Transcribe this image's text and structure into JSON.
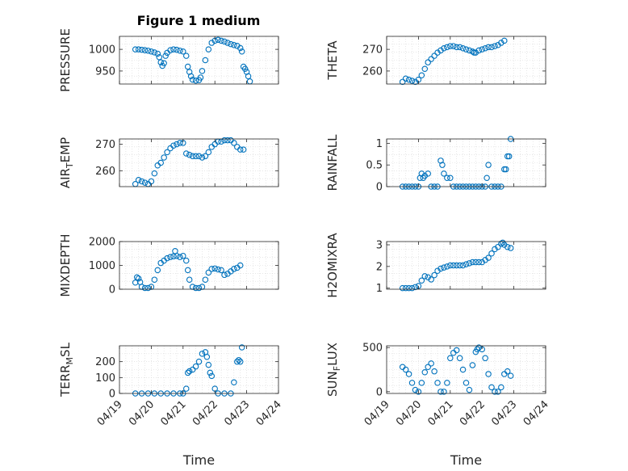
{
  "figure": {
    "title": "Figure 1 medium",
    "marker_color": "#0072BD"
  },
  "chart_data": [
    {
      "type": "scatter",
      "ylabel": "PRESSURE",
      "ylim": [
        920,
        1030
      ],
      "yticks": [
        950,
        1000
      ],
      "xlim": [
        0,
        5
      ],
      "xtick_labels": [
        "04/19",
        "04/20",
        "04/21",
        "04/22",
        "04/23",
        "04/24"
      ],
      "xlabel": "",
      "points": [
        [
          0.5,
          1000
        ],
        [
          0.6,
          1000
        ],
        [
          0.7,
          999
        ],
        [
          0.8,
          998
        ],
        [
          0.9,
          997
        ],
        [
          1.0,
          995
        ],
        [
          1.1,
          993
        ],
        [
          1.2,
          990
        ],
        [
          1.25,
          982
        ],
        [
          1.3,
          970
        ],
        [
          1.35,
          962
        ],
        [
          1.4,
          968
        ],
        [
          1.45,
          985
        ],
        [
          1.5,
          992
        ],
        [
          1.6,
          998
        ],
        [
          1.7,
          1000
        ],
        [
          1.8,
          999
        ],
        [
          1.9,
          997
        ],
        [
          2.0,
          995
        ],
        [
          2.1,
          985
        ],
        [
          2.15,
          960
        ],
        [
          2.2,
          948
        ],
        [
          2.25,
          938
        ],
        [
          2.3,
          930
        ],
        [
          2.4,
          928
        ],
        [
          2.5,
          929
        ],
        [
          2.55,
          935
        ],
        [
          2.6,
          950
        ],
        [
          2.7,
          975
        ],
        [
          2.8,
          1000
        ],
        [
          2.9,
          1015
        ],
        [
          3.0,
          1020
        ],
        [
          3.1,
          1022
        ],
        [
          3.2,
          1020
        ],
        [
          3.3,
          1018
        ],
        [
          3.4,
          1015
        ],
        [
          3.5,
          1012
        ],
        [
          3.6,
          1010
        ],
        [
          3.7,
          1008
        ],
        [
          3.8,
          1003
        ],
        [
          3.85,
          995
        ],
        [
          3.9,
          960
        ],
        [
          3.95,
          955
        ],
        [
          4.0,
          948
        ],
        [
          4.05,
          938
        ],
        [
          4.1,
          926
        ]
      ]
    },
    {
      "type": "scatter",
      "ylabel": "THETA",
      "ylim": [
        254,
        276
      ],
      "yticks": [
        260,
        270
      ],
      "xlim": [
        0,
        5
      ],
      "xtick_labels": [
        "04/19",
        "04/20",
        "04/21",
        "04/22",
        "04/23",
        "04/24"
      ],
      "xlabel": "",
      "points": [
        [
          0.5,
          255
        ],
        [
          0.6,
          256.5
        ],
        [
          0.7,
          256
        ],
        [
          0.8,
          255.5
        ],
        [
          0.9,
          255
        ],
        [
          1.0,
          256
        ],
        [
          1.1,
          258
        ],
        [
          1.2,
          261
        ],
        [
          1.3,
          264
        ],
        [
          1.4,
          265.5
        ],
        [
          1.5,
          267
        ],
        [
          1.6,
          268.5
        ],
        [
          1.7,
          269.5
        ],
        [
          1.8,
          270.5
        ],
        [
          1.9,
          271
        ],
        [
          2.0,
          271.5
        ],
        [
          2.1,
          271.5
        ],
        [
          2.2,
          271
        ],
        [
          2.3,
          271
        ],
        [
          2.4,
          270.5
        ],
        [
          2.5,
          270
        ],
        [
          2.6,
          269.5
        ],
        [
          2.7,
          269
        ],
        [
          2.75,
          268.5
        ],
        [
          2.8,
          268.5
        ],
        [
          2.9,
          269.5
        ],
        [
          3.0,
          270
        ],
        [
          3.1,
          270.5
        ],
        [
          3.2,
          271
        ],
        [
          3.3,
          271
        ],
        [
          3.4,
          271.5
        ],
        [
          3.5,
          272
        ],
        [
          3.6,
          273
        ],
        [
          3.7,
          274
        ]
      ]
    },
    {
      "type": "scatter",
      "ylabel": "AIR_TEMP",
      "ylim": [
        254,
        272
      ],
      "yticks": [
        260,
        270
      ],
      "xlim": [
        0,
        5
      ],
      "xtick_labels": [
        "04/19",
        "04/20",
        "04/21",
        "04/22",
        "04/23",
        "04/24"
      ],
      "xlabel": "",
      "points": [
        [
          0.5,
          255
        ],
        [
          0.6,
          256.5
        ],
        [
          0.7,
          256
        ],
        [
          0.8,
          255.5
        ],
        [
          0.9,
          255
        ],
        [
          1.0,
          256
        ],
        [
          1.1,
          259
        ],
        [
          1.2,
          262
        ],
        [
          1.3,
          263
        ],
        [
          1.4,
          265
        ],
        [
          1.5,
          267
        ],
        [
          1.6,
          268.5
        ],
        [
          1.7,
          269.5
        ],
        [
          1.8,
          270
        ],
        [
          1.9,
          270.5
        ],
        [
          2.0,
          270.5
        ],
        [
          2.1,
          266.5
        ],
        [
          2.2,
          266
        ],
        [
          2.3,
          265.5
        ],
        [
          2.4,
          265.5
        ],
        [
          2.5,
          265.5
        ],
        [
          2.6,
          265
        ],
        [
          2.7,
          265.5
        ],
        [
          2.8,
          267
        ],
        [
          2.9,
          269
        ],
        [
          3.0,
          270
        ],
        [
          3.1,
          271
        ],
        [
          3.2,
          271
        ],
        [
          3.3,
          271.5
        ],
        [
          3.4,
          271.5
        ],
        [
          3.5,
          271.5
        ],
        [
          3.6,
          270.5
        ],
        [
          3.7,
          269
        ],
        [
          3.8,
          268
        ],
        [
          3.9,
          268
        ]
      ]
    },
    {
      "type": "scatter",
      "ylabel": "RAINFALL",
      "ylim": [
        0,
        1.1
      ],
      "yticks": [
        0,
        0.5,
        1
      ],
      "xlim": [
        0,
        5
      ],
      "xtick_labels": [
        "04/19",
        "04/20",
        "04/21",
        "04/22",
        "04/23",
        "04/24"
      ],
      "xlabel": "",
      "points": [
        [
          0.5,
          0
        ],
        [
          0.6,
          0
        ],
        [
          0.7,
          0
        ],
        [
          0.8,
          0
        ],
        [
          0.9,
          0
        ],
        [
          1.0,
          0
        ],
        [
          1.05,
          0.2
        ],
        [
          1.1,
          0.3
        ],
        [
          1.15,
          0.2
        ],
        [
          1.2,
          0.25
        ],
        [
          1.3,
          0.3
        ],
        [
          1.4,
          0
        ],
        [
          1.5,
          0
        ],
        [
          1.6,
          0
        ],
        [
          1.7,
          0.6
        ],
        [
          1.75,
          0.5
        ],
        [
          1.8,
          0.3
        ],
        [
          1.9,
          0.2
        ],
        [
          2.0,
          0.2
        ],
        [
          2.1,
          0
        ],
        [
          2.2,
          0
        ],
        [
          2.3,
          0
        ],
        [
          2.4,
          0
        ],
        [
          2.5,
          0
        ],
        [
          2.6,
          0
        ],
        [
          2.7,
          0
        ],
        [
          2.8,
          0
        ],
        [
          2.9,
          0
        ],
        [
          3.0,
          0
        ],
        [
          3.1,
          0
        ],
        [
          3.15,
          0.2
        ],
        [
          3.2,
          0.5
        ],
        [
          3.3,
          0
        ],
        [
          3.4,
          0
        ],
        [
          3.5,
          0
        ],
        [
          3.6,
          0
        ],
        [
          3.7,
          0.4
        ],
        [
          3.75,
          0.4
        ],
        [
          3.8,
          0.7
        ],
        [
          3.85,
          0.7
        ],
        [
          3.9,
          1.1
        ]
      ]
    },
    {
      "type": "scatter",
      "ylabel": "MIXDEPTH",
      "ylim": [
        0,
        2000
      ],
      "yticks": [
        0,
        1000,
        2000
      ],
      "xlim": [
        0,
        5
      ],
      "xtick_labels": [
        "04/19",
        "04/20",
        "04/21",
        "04/22",
        "04/23",
        "04/24"
      ],
      "xlabel": "",
      "points": [
        [
          0.5,
          280
        ],
        [
          0.55,
          500
        ],
        [
          0.6,
          450
        ],
        [
          0.65,
          300
        ],
        [
          0.7,
          100
        ],
        [
          0.8,
          50
        ],
        [
          0.9,
          50
        ],
        [
          1.0,
          100
        ],
        [
          1.1,
          400
        ],
        [
          1.2,
          800
        ],
        [
          1.3,
          1100
        ],
        [
          1.4,
          1200
        ],
        [
          1.5,
          1300
        ],
        [
          1.6,
          1350
        ],
        [
          1.7,
          1380
        ],
        [
          1.75,
          1600
        ],
        [
          1.8,
          1400
        ],
        [
          1.9,
          1350
        ],
        [
          2.0,
          1400
        ],
        [
          2.1,
          1200
        ],
        [
          2.15,
          800
        ],
        [
          2.2,
          400
        ],
        [
          2.3,
          100
        ],
        [
          2.4,
          50
        ],
        [
          2.5,
          50
        ],
        [
          2.6,
          100
        ],
        [
          2.7,
          400
        ],
        [
          2.8,
          700
        ],
        [
          2.9,
          850
        ],
        [
          3.0,
          870
        ],
        [
          3.1,
          830
        ],
        [
          3.2,
          800
        ],
        [
          3.3,
          600
        ],
        [
          3.4,
          650
        ],
        [
          3.5,
          750
        ],
        [
          3.6,
          850
        ],
        [
          3.7,
          900
        ],
        [
          3.8,
          1000
        ]
      ]
    },
    {
      "type": "scatter",
      "ylabel": "H2OMIXRA",
      "ylim": [
        0.95,
        3.15
      ],
      "yticks": [
        1,
        2,
        3
      ],
      "xlim": [
        0,
        5
      ],
      "xtick_labels": [
        "04/19",
        "04/20",
        "04/21",
        "04/22",
        "04/23",
        "04/24"
      ],
      "xlabel": "",
      "points": [
        [
          0.5,
          1
        ],
        [
          0.6,
          1
        ],
        [
          0.7,
          1
        ],
        [
          0.8,
          1
        ],
        [
          0.9,
          1.05
        ],
        [
          1.0,
          1.1
        ],
        [
          1.1,
          1.35
        ],
        [
          1.2,
          1.55
        ],
        [
          1.3,
          1.5
        ],
        [
          1.4,
          1.4
        ],
        [
          1.5,
          1.6
        ],
        [
          1.6,
          1.8
        ],
        [
          1.7,
          1.9
        ],
        [
          1.8,
          1.95
        ],
        [
          1.9,
          2
        ],
        [
          2.0,
          2.05
        ],
        [
          2.1,
          2.05
        ],
        [
          2.2,
          2.05
        ],
        [
          2.3,
          2.05
        ],
        [
          2.4,
          2.05
        ],
        [
          2.5,
          2.1
        ],
        [
          2.6,
          2.15
        ],
        [
          2.7,
          2.2
        ],
        [
          2.8,
          2.2
        ],
        [
          2.9,
          2.2
        ],
        [
          3.0,
          2.2
        ],
        [
          3.1,
          2.3
        ],
        [
          3.2,
          2.4
        ],
        [
          3.3,
          2.6
        ],
        [
          3.4,
          2.8
        ],
        [
          3.5,
          2.9
        ],
        [
          3.6,
          3.05
        ],
        [
          3.65,
          3.1
        ],
        [
          3.7,
          3.0
        ],
        [
          3.8,
          2.9
        ],
        [
          3.9,
          2.85
        ]
      ]
    },
    {
      "type": "scatter",
      "ylabel": "TERR_MSL",
      "ylim": [
        0,
        300
      ],
      "yticks": [
        0,
        100,
        200
      ],
      "xlim": [
        0,
        5
      ],
      "xtick_labels": [
        "04/19",
        "04/20",
        "04/21",
        "04/22",
        "04/23",
        "04/24"
      ],
      "xlabel": "Time",
      "points": [
        [
          0.5,
          0
        ],
        [
          0.7,
          0
        ],
        [
          0.9,
          0
        ],
        [
          1.1,
          0
        ],
        [
          1.3,
          0
        ],
        [
          1.5,
          0
        ],
        [
          1.7,
          0
        ],
        [
          1.9,
          0
        ],
        [
          2.0,
          0
        ],
        [
          2.1,
          30
        ],
        [
          2.15,
          130
        ],
        [
          2.2,
          140
        ],
        [
          2.3,
          150
        ],
        [
          2.4,
          170
        ],
        [
          2.5,
          200
        ],
        [
          2.6,
          250
        ],
        [
          2.7,
          260
        ],
        [
          2.75,
          230
        ],
        [
          2.8,
          180
        ],
        [
          2.85,
          130
        ],
        [
          2.9,
          110
        ],
        [
          3.0,
          30
        ],
        [
          3.1,
          0
        ],
        [
          3.3,
          0
        ],
        [
          3.5,
          0
        ],
        [
          3.6,
          70
        ],
        [
          3.7,
          200
        ],
        [
          3.75,
          210
        ],
        [
          3.8,
          200
        ],
        [
          3.85,
          290
        ]
      ]
    },
    {
      "type": "scatter",
      "ylabel": "SUN_FLUX",
      "ylim": [
        -20,
        520
      ],
      "yticks": [
        0,
        500
      ],
      "xlim": [
        0,
        5
      ],
      "xtick_labels": [
        "04/19",
        "04/20",
        "04/21",
        "04/22",
        "04/23",
        "04/24"
      ],
      "xlabel": "Time",
      "points": [
        [
          0.5,
          280
        ],
        [
          0.6,
          250
        ],
        [
          0.7,
          200
        ],
        [
          0.8,
          100
        ],
        [
          0.9,
          20
        ],
        [
          1.0,
          0
        ],
        [
          1.1,
          100
        ],
        [
          1.2,
          220
        ],
        [
          1.3,
          280
        ],
        [
          1.4,
          320
        ],
        [
          1.5,
          230
        ],
        [
          1.6,
          100
        ],
        [
          1.7,
          0
        ],
        [
          1.8,
          0
        ],
        [
          1.9,
          100
        ],
        [
          2.0,
          380
        ],
        [
          2.1,
          440
        ],
        [
          2.2,
          470
        ],
        [
          2.3,
          380
        ],
        [
          2.4,
          250
        ],
        [
          2.5,
          100
        ],
        [
          2.6,
          20
        ],
        [
          2.7,
          300
        ],
        [
          2.8,
          450
        ],
        [
          2.85,
          480
        ],
        [
          2.9,
          500
        ],
        [
          3.0,
          480
        ],
        [
          3.1,
          380
        ],
        [
          3.2,
          200
        ],
        [
          3.3,
          50
        ],
        [
          3.4,
          0
        ],
        [
          3.5,
          0
        ],
        [
          3.6,
          50
        ],
        [
          3.7,
          200
        ],
        [
          3.8,
          230
        ],
        [
          3.9,
          180
        ]
      ]
    }
  ]
}
